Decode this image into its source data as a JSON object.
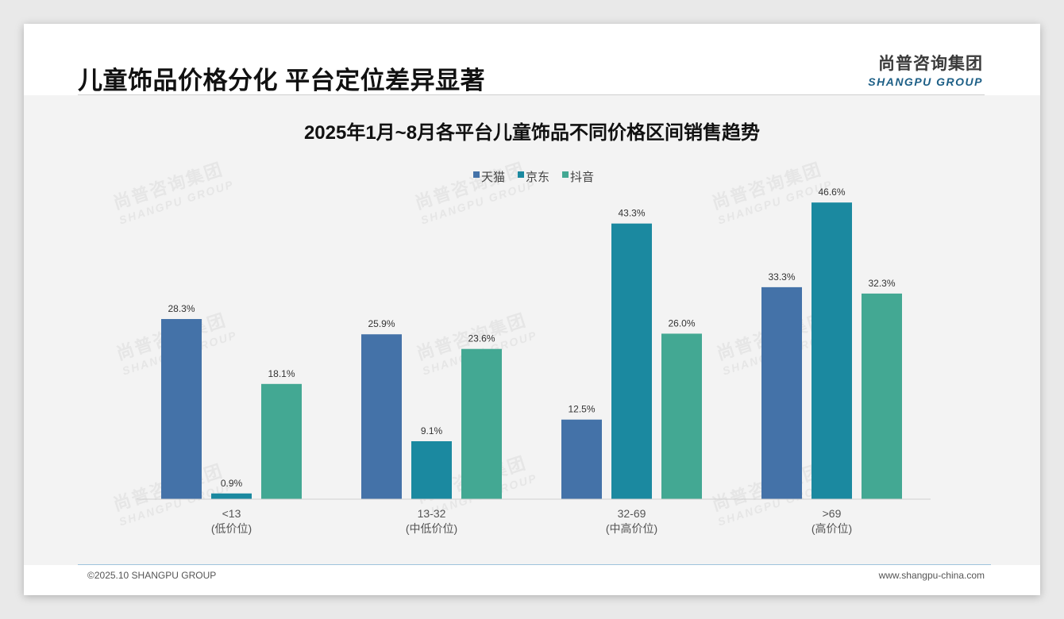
{
  "page": {
    "title": "儿童饰品价格分化 平台定位差异显著",
    "logo_cn": "尚普咨询集团",
    "logo_en": "SHANGPU GROUP",
    "footer_left": "©2025.10 SHANGPU GROUP",
    "footer_right": "www.shangpu-china.com",
    "watermark_cn": "尚普咨询集团",
    "watermark_en": "SHANGPU GROUP"
  },
  "chart_data": {
    "type": "bar",
    "title": "2025年1月~8月各平台儿童饰品不同价格区间销售趋势",
    "categories": [
      "<13",
      "13-32",
      "32-69",
      ">69"
    ],
    "category_sublabels": [
      "(低价位)",
      "(中低价位)",
      "(中高价位)",
      "(高价位)"
    ],
    "series": [
      {
        "name": "天猫",
        "color": "#4472a8",
        "values": [
          28.3,
          25.9,
          12.5,
          33.3
        ],
        "labels": [
          "28.3%",
          "25.9%",
          "12.5%",
          "33.3%"
        ]
      },
      {
        "name": "京东",
        "color": "#1b89a0",
        "values": [
          0.9,
          9.1,
          43.3,
          46.6
        ],
        "labels": [
          "0.9%",
          "9.1%",
          "43.3%",
          "46.6%"
        ]
      },
      {
        "name": "抖音",
        "color": "#43a893",
        "values": [
          18.1,
          23.6,
          26.0,
          32.3
        ],
        "labels": [
          "18.1%",
          "23.6%",
          "26.0%",
          "32.3%"
        ]
      }
    ],
    "ylim": [
      0,
      50
    ],
    "grid": false,
    "legend": "top-center"
  }
}
